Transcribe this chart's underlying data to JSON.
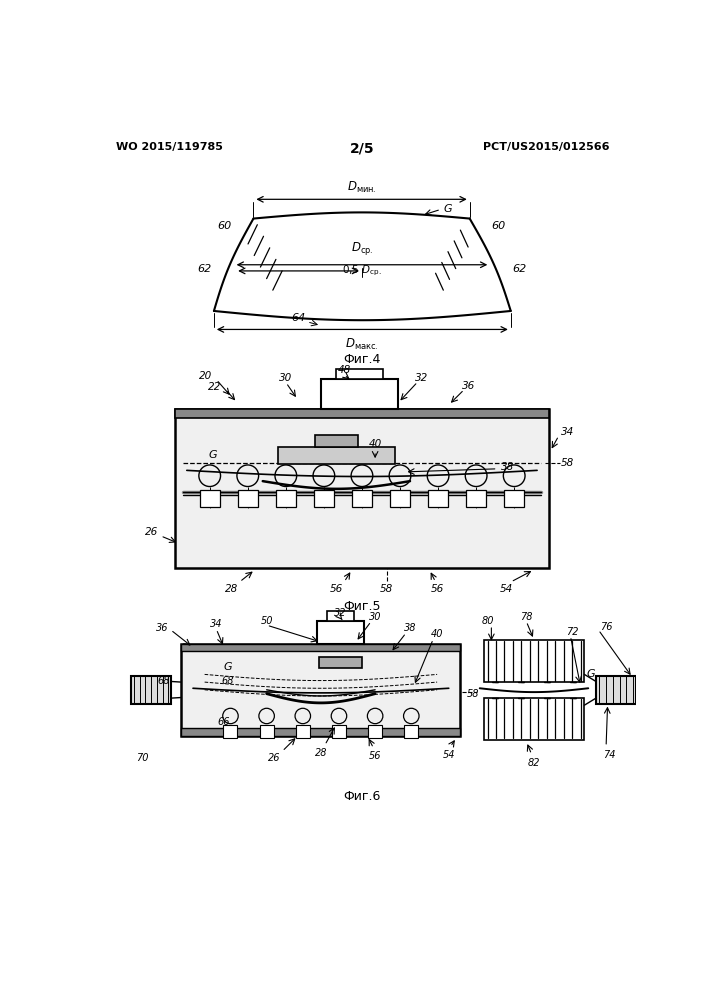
{
  "header_left": "WO 2015/119785",
  "header_right": "PCT/US2015/012566",
  "header_center": "2/5",
  "fig4_label": "Фиг.4",
  "fig5_label": "Фиг.5",
  "fig6_label": "Фиг.6",
  "bg_color": "#ffffff",
  "line_color": "#000000"
}
